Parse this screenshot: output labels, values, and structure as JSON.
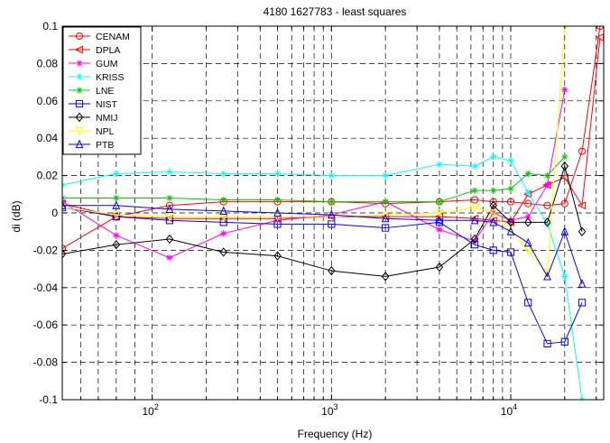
{
  "chart_data": {
    "type": "line",
    "title": "4180 1627783 - least squares",
    "xlabel": "Frequency (Hz)",
    "ylabel": "di (dB)",
    "x_scale": "log",
    "xlim": [
      31.5,
      33000
    ],
    "ylim": [
      -0.1,
      0.1
    ],
    "grid": true,
    "legend_position": "top-left",
    "y_ticks": [
      -0.1,
      -0.08,
      -0.06,
      -0.04,
      -0.02,
      0,
      0.02,
      0.04,
      0.06,
      0.08,
      0.1
    ],
    "y_tick_labels": [
      "-0.1",
      "-0.08",
      "-0.06",
      "-0.04",
      "-0.02",
      "0",
      "0.02",
      "0.04",
      "0.06",
      "0.08",
      "0.1"
    ],
    "x_major_ticks": [
      100,
      1000,
      10000
    ],
    "x_tick_labels": [
      {
        "base": "10",
        "exp": "2"
      },
      {
        "base": "10",
        "exp": "3"
      },
      {
        "base": "10",
        "exp": "4"
      }
    ],
    "x_grid_lines": [
      31.5,
      40,
      50,
      63,
      80,
      100,
      200,
      300,
      400,
      500,
      600,
      700,
      800,
      900,
      1000,
      2000,
      3000,
      4000,
      5000,
      6000,
      7000,
      8000,
      9000,
      10000,
      20000,
      30000
    ],
    "x": [
      31.5,
      63,
      125,
      250,
      500,
      1000,
      2000,
      4000,
      6300,
      8000,
      10000,
      12500,
      16000,
      20000,
      25000,
      31500
    ],
    "series": [
      {
        "name": "CENAM",
        "color": "#ff0000",
        "marker": "circle",
        "values": [
          -0.019,
          -0.002,
          0.004,
          0.006,
          0.006,
          0.006,
          0.005,
          0.006,
          0.007,
          0.006,
          0.006,
          0.005,
          0.004,
          0.005,
          0.033,
          0.1
        ]
      },
      {
        "name": "DPLA",
        "color": "#ff0000",
        "marker": "triangle-left",
        "values": [
          0.005,
          -0.002,
          -0.003,
          -0.003,
          -0.003,
          -0.002,
          -0.002,
          -0.002,
          -0.003,
          -0.004,
          -0.005,
          0.01,
          0.015,
          0.019,
          0.004,
          0.094
        ]
      },
      {
        "name": "GUM",
        "color": "#ff00ff",
        "marker": "star",
        "values": [
          0.006,
          -0.012,
          -0.024,
          -0.011,
          -0.004,
          -0.001,
          0.006,
          -0.009,
          -0.015,
          0.0,
          -0.004,
          -0.002,
          0.015,
          0.066,
          null,
          null
        ]
      },
      {
        "name": "KRISS",
        "color": "#00ffff",
        "marker": "star",
        "values": [
          0.015,
          0.021,
          0.022,
          0.021,
          0.021,
          0.02,
          0.02,
          0.026,
          0.025,
          0.03,
          0.028,
          0.011,
          -0.006,
          -0.034,
          -0.1,
          null
        ]
      },
      {
        "name": "LNE",
        "color": "#00cc00",
        "marker": "star",
        "values": [
          0.008,
          0.008,
          0.008,
          0.007,
          0.007,
          0.006,
          0.006,
          0.006,
          0.012,
          0.012,
          0.013,
          0.021,
          0.02,
          0.03,
          null,
          null
        ]
      },
      {
        "name": "NIST",
        "color": "#0000ff",
        "marker": "square",
        "values": [
          0.003,
          -0.002,
          -0.004,
          -0.005,
          -0.006,
          -0.006,
          -0.008,
          -0.005,
          -0.017,
          -0.02,
          -0.021,
          -0.048,
          -0.07,
          -0.069,
          -0.048,
          null
        ]
      },
      {
        "name": "NMIJ",
        "color": "#000000",
        "marker": "diamond",
        "values": [
          -0.022,
          -0.017,
          -0.014,
          -0.021,
          -0.023,
          -0.031,
          -0.034,
          -0.029,
          -0.014,
          0.004,
          -0.005,
          -0.005,
          -0.005,
          0.025,
          -0.01,
          null
        ]
      },
      {
        "name": "NPL",
        "color": "#ffff00",
        "marker": "triangle-down",
        "values": [
          0.003,
          -0.001,
          -0.002,
          -0.002,
          -0.002,
          -0.002,
          -0.001,
          0.0,
          0.003,
          0.0,
          -0.01,
          -0.02,
          -0.032,
          0.1,
          null,
          null
        ]
      },
      {
        "name": "PTB",
        "color": "#0000ff",
        "marker": "triangle-up",
        "values": [
          0.004,
          0.004,
          0.002,
          0.001,
          0.0,
          -0.001,
          -0.003,
          -0.004,
          -0.004,
          -0.005,
          -0.01,
          -0.016,
          -0.034,
          -0.01,
          -0.038,
          null
        ]
      }
    ]
  }
}
